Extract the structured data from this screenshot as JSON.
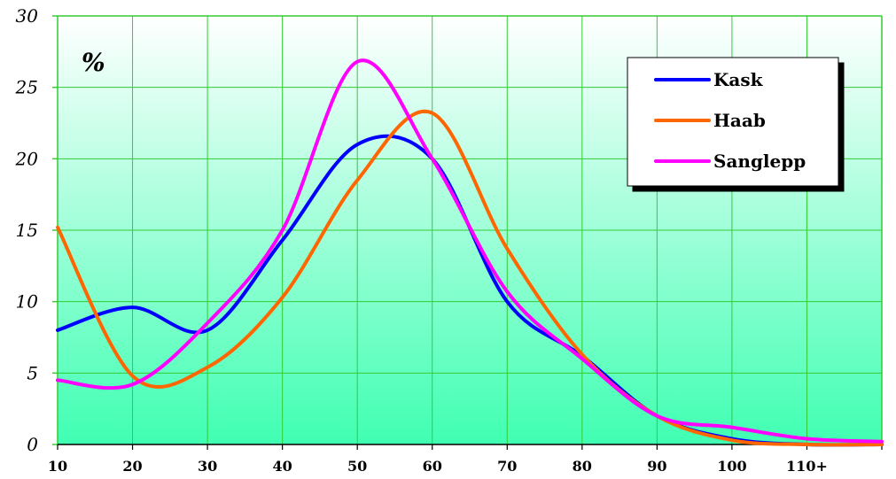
{
  "chart_data": {
    "type": "line",
    "smooth": true,
    "unit_label": "%",
    "title": "",
    "xlabel": "",
    "ylabel": "",
    "x": [
      10,
      20,
      30,
      40,
      50,
      60,
      70,
      80,
      90,
      100,
      110,
      120
    ],
    "x_tick_labels": [
      "10",
      "20",
      "30",
      "40",
      "50",
      "60",
      "70",
      "80",
      "90",
      "100",
      "110+",
      ""
    ],
    "xlim": [
      10,
      120
    ],
    "ylim": [
      0,
      30
    ],
    "y_ticks": [
      0,
      5,
      10,
      15,
      20,
      25,
      30
    ],
    "grid": true,
    "legend_position": "top-right",
    "background_gradient": [
      "#ffffff",
      "#3fffb2"
    ],
    "grid_color": "#33cc33",
    "series": [
      {
        "name": "Kask",
        "color": "#0000ff",
        "values": [
          8,
          9.6,
          8,
          14.3,
          21,
          20,
          10,
          6.2,
          2,
          0.4,
          0,
          0
        ]
      },
      {
        "name": "Haab",
        "color": "#ff6600",
        "values": [
          15.2,
          4.8,
          5.4,
          10.3,
          18.5,
          23.2,
          13.7,
          6.3,
          2,
          0.3,
          0,
          0
        ]
      },
      {
        "name": "Sanglepp",
        "color": "#ff00ff",
        "values": [
          4.5,
          4.2,
          8.5,
          15,
          26.8,
          20,
          10.7,
          6,
          2,
          1.2,
          0.4,
          0.2
        ]
      }
    ]
  }
}
